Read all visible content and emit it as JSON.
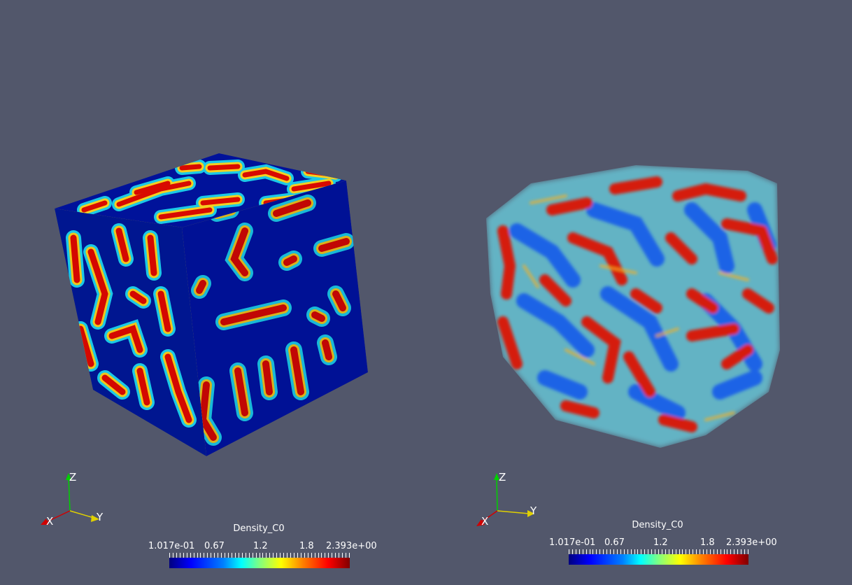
{
  "views": [
    {
      "render": "surface",
      "colorbar": {
        "title": "Density_C0",
        "labels": [
          "1.017e-01",
          "0.67",
          "1.2",
          "1.8",
          "2.393e+00"
        ]
      },
      "axes": {
        "x": "X",
        "y": "Y",
        "z": "Z"
      }
    },
    {
      "render": "volume",
      "colorbar": {
        "title": "Density_C0",
        "labels": [
          "1.017e-01",
          "0.67",
          "1.2",
          "1.8",
          "2.393e+00"
        ]
      },
      "axes": {
        "x": "X",
        "y": "Y",
        "z": "Z"
      }
    }
  ],
  "colors": {
    "background": "#52576b",
    "low": "#00007f",
    "mid": "#00ffff",
    "high": "#7f0000"
  }
}
